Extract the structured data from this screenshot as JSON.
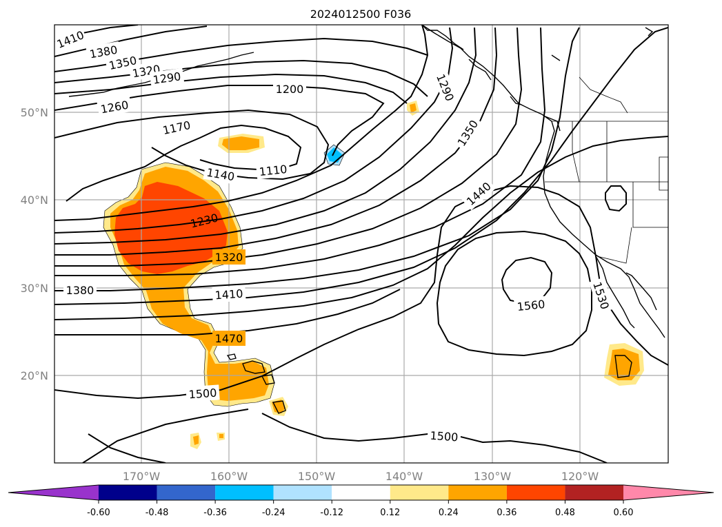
{
  "title": "2024012500 F036",
  "lat_labels": [
    "50°N",
    "40°N",
    "30°N",
    "20°N"
  ],
  "lon_labels": [
    "170°W",
    "160°W",
    "150°W",
    "140°W",
    "130°W",
    "120°W"
  ],
  "contour_labels": [
    "1410",
    "1380",
    "1350",
    "1320",
    "1290",
    "1260",
    "1200",
    "1170",
    "1140",
    "1110",
    "1230",
    "1320",
    "1380",
    "1410",
    "1470",
    "1500",
    "1290",
    "1350",
    "1440",
    "1560",
    "1530",
    "1500"
  ],
  "colorbar": {
    "ticks": [
      "-0.60",
      "-0.48",
      "-0.36",
      "-0.24",
      "-0.12",
      "0.12",
      "0.24",
      "0.36",
      "0.48",
      "0.60"
    ],
    "colors": [
      "#9933cc",
      "#00008b",
      "#3366cc",
      "#00bfff",
      "#b0e2ff",
      "#ffffff",
      "#ffe98a",
      "#ffa500",
      "#ff4500",
      "#b22222",
      "#ff88aa"
    ]
  }
}
